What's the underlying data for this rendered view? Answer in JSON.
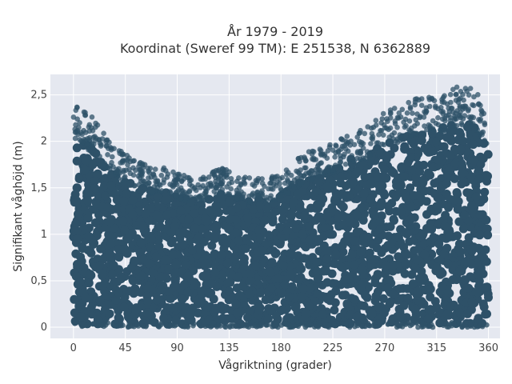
{
  "chart_data": {
    "type": "scatter",
    "title_line1": "År 1979 - 2019",
    "title_line2": "Koordinat (Sweref 99 TM): E 251538, N 6362889",
    "xlabel": "Vågriktning (grader)",
    "ylabel": "Signifikant våghöjd (m)",
    "xlim": [
      -20,
      370
    ],
    "ylim": [
      -0.12,
      2.72
    ],
    "x_ticks": [
      0,
      45,
      90,
      135,
      180,
      225,
      270,
      315,
      360
    ],
    "x_tick_labels": [
      "0",
      "45",
      "90",
      "135",
      "180",
      "225",
      "270",
      "315",
      "360"
    ],
    "y_ticks": [
      0,
      0.5,
      1,
      1.5,
      2,
      2.5
    ],
    "y_tick_labels": [
      "0",
      "0,5",
      "1",
      "1,5",
      "2",
      "2,5"
    ],
    "grid": true,
    "legend": "none",
    "marker_color": "#2e5168",
    "plot_bg": "#e5e8f0",
    "grid_color": "#ffffff",
    "x_range_of_points": [
      0,
      360
    ],
    "y_min_of_points": 0,
    "upper_envelope": {
      "x": [
        0,
        10,
        20,
        30,
        40,
        50,
        60,
        70,
        80,
        90,
        100,
        110,
        120,
        130,
        140,
        150,
        160,
        170,
        180,
        190,
        200,
        210,
        220,
        230,
        240,
        250,
        260,
        270,
        280,
        290,
        300,
        310,
        320,
        330,
        340,
        350,
        360
      ],
      "y": [
        2.4,
        2.3,
        2.2,
        2.0,
        1.9,
        1.8,
        1.75,
        1.7,
        1.7,
        1.65,
        1.6,
        1.6,
        1.65,
        1.7,
        1.65,
        1.6,
        1.6,
        1.6,
        1.65,
        1.75,
        1.85,
        1.9,
        1.95,
        2.0,
        2.1,
        2.1,
        2.2,
        2.3,
        2.35,
        2.4,
        2.45,
        2.45,
        2.5,
        2.55,
        2.6,
        2.5,
        2.3
      ]
    }
  }
}
